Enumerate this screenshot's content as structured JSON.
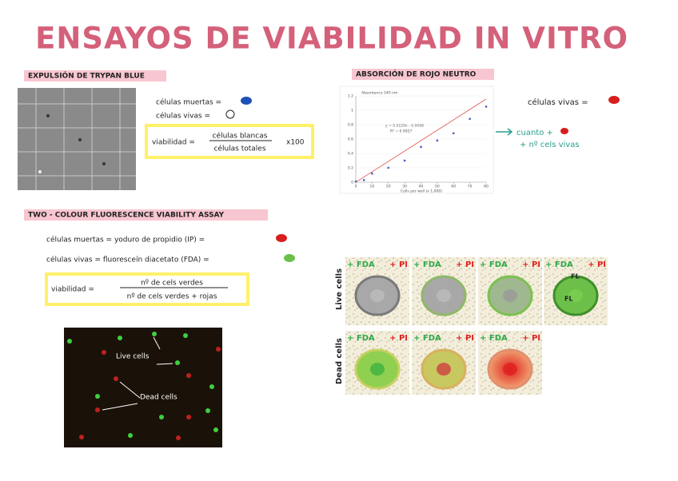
{
  "title": "ENSAYOS DE VIABILIDAD IN VITRO",
  "trypan": {
    "heading": "EXPULSIÓN DE TRYPAN BLUE",
    "dead": "células muertas =",
    "live": "células vivas =",
    "formula": {
      "lhs": "viabilidad =",
      "numerator": "células blancas",
      "denominator": "células totales",
      "factor": "x100"
    }
  },
  "neutral_red": {
    "heading": "ABSORCIÓN DE ROJO NEUTRO",
    "live": "células vivas =",
    "note1": "cuanto +",
    "note2": "+ nº cels vivas"
  },
  "chart_data": {
    "type": "scatter",
    "title": "Absorbance 540 nm",
    "equation": "y = 0.0129x - 0.0098",
    "r2": "R² = 0.9927",
    "x_label": "Cells per well (x 1,000)",
    "x": [
      0,
      5,
      10,
      20,
      30,
      40,
      50,
      60,
      70,
      80
    ],
    "values": [
      0.01,
      0.03,
      0.12,
      0.2,
      0.3,
      0.49,
      0.58,
      0.68,
      0.88,
      1.05
    ],
    "color": "#4a5fc1",
    "xlim": [
      0,
      80
    ],
    "ylim": [
      0,
      1.2
    ],
    "xticks": [
      0,
      10,
      20,
      30,
      40,
      50,
      60,
      70,
      80
    ],
    "yticks": [
      0,
      0.2,
      0.4,
      0.6,
      0.8,
      1,
      1.2
    ]
  },
  "fluorescence": {
    "heading": "TWO - COLOUR FLUORESCENCE VIABILITY ASSAY",
    "dead": "células muertas = yoduro de propidio (IP) =",
    "live": "células vivas = fluoresceín diacetato (FDA) =",
    "formula": {
      "lhs": "viabilidad =",
      "numerator": "nº de cels verdes",
      "denominator": "nº de cels verdes + rojas"
    },
    "micrograph": {
      "live_label": "Live cells",
      "dead_label": "Dead cells"
    },
    "diagram": {
      "live_row": "Live cells",
      "dead_row": "Dead cells",
      "fda": "+ FDA",
      "pi": "+ PI",
      "fl": "FL"
    }
  }
}
